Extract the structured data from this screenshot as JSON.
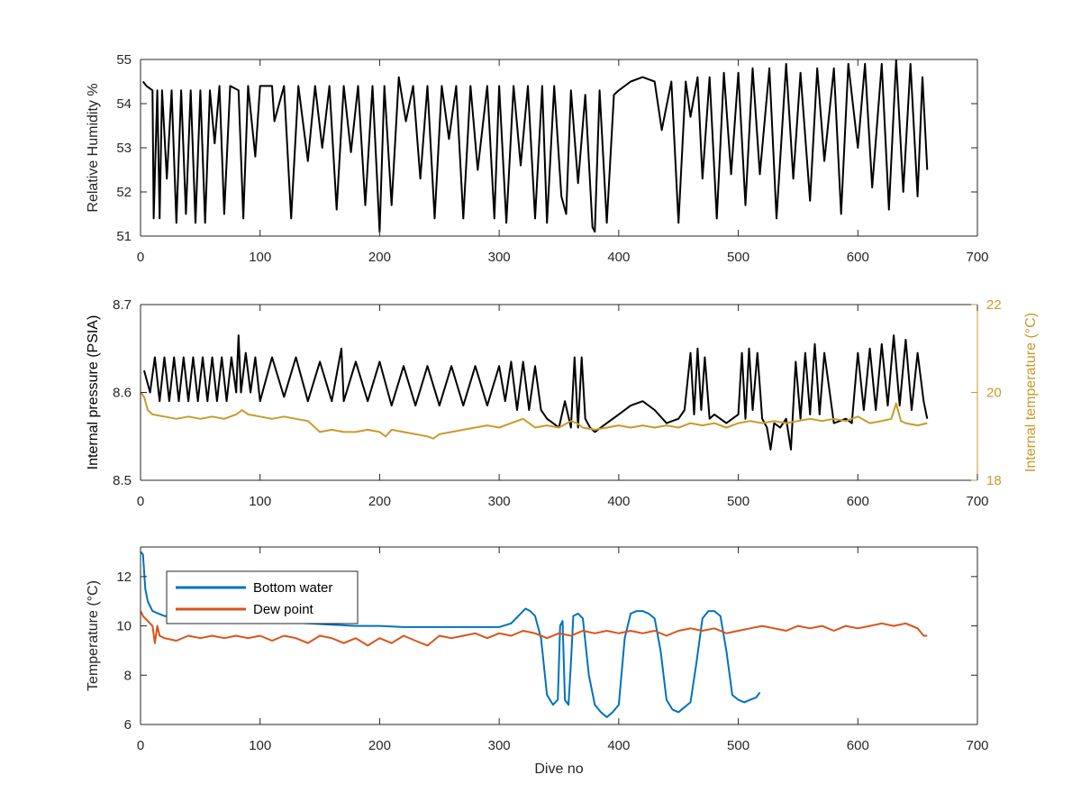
{
  "chart_data": [
    {
      "type": "line",
      "xlabel": "",
      "ylabel": "Relative Humidity %",
      "xlim": [
        0,
        700
      ],
      "ylim": [
        51,
        55
      ],
      "xticks": [
        0,
        100,
        200,
        300,
        400,
        500,
        600,
        700
      ],
      "yticks": [
        51,
        52,
        53,
        54,
        55
      ],
      "grid": false,
      "series": [
        {
          "name": "",
          "color": "#000000",
          "x": [
            2,
            5,
            10,
            11,
            14,
            16,
            18,
            22,
            26,
            30,
            34,
            38,
            42,
            46,
            50,
            54,
            58,
            62,
            66,
            70,
            75,
            82,
            86,
            90,
            96,
            100,
            110,
            112,
            120,
            126,
            132,
            140,
            146,
            152,
            158,
            164,
            170,
            176,
            182,
            188,
            194,
            198,
            200,
            204,
            210,
            216,
            222,
            228,
            234,
            240,
            246,
            252,
            258,
            264,
            270,
            276,
            282,
            290,
            296,
            300,
            306,
            312,
            318,
            324,
            330,
            336,
            340,
            346,
            352,
            356,
            360,
            366,
            372,
            378,
            380,
            384,
            390,
            396,
            400,
            410,
            420,
            430,
            436,
            444,
            450,
            456,
            460,
            466,
            470,
            476,
            482,
            488,
            494,
            500,
            506,
            512,
            518,
            526,
            532,
            540,
            546,
            552,
            560,
            566,
            572,
            580,
            586,
            592,
            600,
            606,
            612,
            620,
            626,
            632,
            638,
            644,
            650,
            654,
            658
          ],
          "values": [
            54.5,
            54.4,
            54.3,
            51.4,
            54.3,
            51.4,
            54.3,
            52.3,
            54.3,
            51.3,
            54.3,
            51.5,
            54.3,
            51.3,
            54.3,
            51.3,
            54.3,
            53.1,
            54.4,
            51.5,
            54.4,
            54.3,
            51.4,
            54.4,
            52.8,
            54.4,
            54.4,
            53.6,
            54.4,
            51.4,
            54.4,
            52.7,
            54.4,
            53.0,
            54.4,
            51.6,
            54.4,
            52.9,
            54.4,
            51.7,
            54.4,
            52.2,
            51.1,
            54.4,
            51.7,
            54.6,
            53.6,
            54.4,
            52.3,
            54.4,
            51.4,
            54.4,
            53.2,
            54.4,
            51.4,
            54.4,
            52.5,
            54.4,
            51.4,
            54.4,
            51.3,
            54.4,
            52.6,
            54.4,
            51.4,
            54.4,
            51.3,
            54.4,
            51.9,
            51.5,
            54.3,
            52.2,
            54.2,
            51.2,
            51.1,
            54.3,
            51.3,
            54.2,
            54.3,
            54.5,
            54.6,
            54.5,
            53.4,
            54.5,
            51.3,
            54.5,
            53.7,
            54.6,
            52.3,
            54.6,
            51.4,
            54.7,
            52.4,
            54.7,
            51.7,
            54.8,
            52.4,
            54.8,
            51.4,
            54.9,
            52.3,
            54.7,
            51.8,
            54.8,
            52.7,
            54.8,
            51.5,
            54.9,
            53.0,
            54.9,
            52.1,
            54.9,
            51.6,
            55.0,
            52.0,
            54.9,
            51.9,
            54.6,
            52.5
          ]
        }
      ]
    },
    {
      "type": "line",
      "xlabel": "",
      "ylabel": "Internal pressure (PSIA)",
      "y2label": "Internal temperature (°C)",
      "xlim": [
        0,
        700
      ],
      "ylim": [
        8.5,
        8.7
      ],
      "y2lim": [
        18,
        22
      ],
      "xticks": [
        0,
        100,
        200,
        300,
        400,
        500,
        600,
        700
      ],
      "yticks": [
        8.5,
        8.6,
        8.7
      ],
      "y2ticks": [
        18,
        20,
        22
      ],
      "grid": false,
      "series": [
        {
          "name": "",
          "axis": "left",
          "color": "#000000",
          "x": [
            3,
            8,
            12,
            16,
            20,
            24,
            28,
            32,
            36,
            40,
            44,
            48,
            52,
            56,
            60,
            64,
            68,
            72,
            76,
            80,
            82,
            84,
            88,
            92,
            96,
            100,
            110,
            120,
            130,
            140,
            150,
            160,
            168,
            170,
            180,
            190,
            200,
            210,
            220,
            230,
            240,
            250,
            260,
            270,
            280,
            290,
            300,
            305,
            310,
            315,
            320,
            325,
            330,
            335,
            340,
            345,
            350,
            355,
            360,
            363,
            366,
            369,
            372,
            376,
            380,
            390,
            400,
            410,
            420,
            430,
            440,
            450,
            455,
            460,
            463,
            466,
            469,
            472,
            476,
            480,
            490,
            500,
            503,
            506,
            509,
            512,
            516,
            520,
            524,
            527,
            530,
            535,
            540,
            544,
            548,
            552,
            556,
            560,
            564,
            568,
            572,
            580,
            590,
            595,
            600,
            605,
            610,
            615,
            620,
            625,
            630,
            635,
            640,
            645,
            650,
            655,
            658
          ],
          "values": [
            8.625,
            8.6,
            8.64,
            8.59,
            8.64,
            8.59,
            8.64,
            8.59,
            8.64,
            8.59,
            8.64,
            8.59,
            8.64,
            8.59,
            8.64,
            8.59,
            8.64,
            8.59,
            8.64,
            8.6,
            8.665,
            8.6,
            8.645,
            8.6,
            8.64,
            8.59,
            8.64,
            8.595,
            8.64,
            8.59,
            8.635,
            8.59,
            8.65,
            8.59,
            8.635,
            8.59,
            8.635,
            8.585,
            8.63,
            8.585,
            8.63,
            8.585,
            8.63,
            8.585,
            8.63,
            8.585,
            8.63,
            8.59,
            8.635,
            8.58,
            8.635,
            8.58,
            8.63,
            8.58,
            8.57,
            8.565,
            8.56,
            8.59,
            8.56,
            8.64,
            8.56,
            8.64,
            8.57,
            8.56,
            8.555,
            8.565,
            8.575,
            8.585,
            8.59,
            8.58,
            8.565,
            8.57,
            8.58,
            8.645,
            8.575,
            8.65,
            8.58,
            8.64,
            8.57,
            8.575,
            8.565,
            8.575,
            8.645,
            8.57,
            8.65,
            8.58,
            8.645,
            8.57,
            8.56,
            8.535,
            8.565,
            8.56,
            8.57,
            8.535,
            8.635,
            8.57,
            8.645,
            8.575,
            8.655,
            8.575,
            8.645,
            8.565,
            8.57,
            8.565,
            8.645,
            8.58,
            8.65,
            8.58,
            8.655,
            8.585,
            8.665,
            8.585,
            8.66,
            8.58,
            8.645,
            8.59,
            8.57
          ]
        },
        {
          "name": "",
          "axis": "right",
          "color": "#C89A2A",
          "x": [
            0,
            3,
            6,
            10,
            20,
            30,
            40,
            50,
            60,
            70,
            80,
            85,
            90,
            100,
            110,
            120,
            130,
            140,
            150,
            160,
            170,
            180,
            190,
            200,
            205,
            210,
            220,
            230,
            240,
            245,
            250,
            260,
            270,
            280,
            290,
            300,
            310,
            320,
            330,
            340,
            350,
            360,
            365,
            370,
            380,
            390,
            400,
            410,
            420,
            430,
            440,
            450,
            460,
            470,
            480,
            490,
            500,
            510,
            520,
            530,
            540,
            550,
            560,
            570,
            580,
            590,
            600,
            610,
            620,
            628,
            632,
            636,
            640,
            650,
            658
          ],
          "values": [
            20.0,
            19.9,
            19.6,
            19.5,
            19.45,
            19.4,
            19.45,
            19.4,
            19.45,
            19.4,
            19.5,
            19.6,
            19.5,
            19.45,
            19.4,
            19.45,
            19.4,
            19.35,
            19.1,
            19.15,
            19.1,
            19.1,
            19.15,
            19.1,
            19.0,
            19.15,
            19.1,
            19.05,
            19.0,
            18.95,
            19.05,
            19.1,
            19.15,
            19.2,
            19.25,
            19.2,
            19.3,
            19.4,
            19.2,
            19.25,
            19.2,
            19.35,
            19.3,
            19.2,
            19.15,
            19.2,
            19.25,
            19.2,
            19.25,
            19.2,
            19.25,
            19.2,
            19.3,
            19.25,
            19.3,
            19.2,
            19.3,
            19.35,
            19.3,
            19.35,
            19.3,
            19.35,
            19.4,
            19.35,
            19.4,
            19.35,
            19.45,
            19.3,
            19.35,
            19.4,
            19.75,
            19.35,
            19.3,
            19.25,
            19.3
          ]
        }
      ]
    },
    {
      "type": "line",
      "xlabel": "Dive no",
      "ylabel": "Temperature (°C)",
      "xlim": [
        0,
        700
      ],
      "ylim": [
        6,
        13.2
      ],
      "xticks": [
        0,
        100,
        200,
        300,
        400,
        500,
        600,
        700
      ],
      "yticks": [
        6,
        8,
        10,
        12
      ],
      "grid": false,
      "legend": "top-left",
      "series": [
        {
          "name": "Bottom water",
          "color": "#0072BD",
          "x": [
            0,
            2,
            4,
            6,
            8,
            10,
            15,
            20,
            40,
            60,
            80,
            100,
            120,
            140,
            160,
            180,
            200,
            220,
            240,
            260,
            280,
            300,
            310,
            318,
            322,
            326,
            330,
            335,
            340,
            345,
            349,
            351,
            353,
            355,
            358,
            360,
            362,
            366,
            370,
            375,
            380,
            385,
            390,
            395,
            400,
            405,
            410,
            415,
            420,
            425,
            430,
            435,
            440,
            445,
            450,
            455,
            460,
            465,
            470,
            475,
            480,
            485,
            490,
            495,
            500,
            505,
            510,
            515,
            518
          ],
          "values": [
            13.0,
            12.9,
            11.5,
            11.0,
            10.8,
            10.6,
            10.5,
            10.4,
            10.35,
            10.3,
            10.25,
            10.2,
            10.15,
            10.1,
            10.05,
            10.0,
            10.0,
            9.95,
            9.95,
            9.95,
            9.95,
            9.95,
            10.1,
            10.5,
            10.7,
            10.6,
            10.4,
            9.5,
            7.2,
            6.8,
            7.0,
            10.0,
            10.2,
            7.0,
            6.8,
            8.5,
            10.4,
            10.5,
            10.3,
            8.0,
            6.8,
            6.5,
            6.3,
            6.5,
            6.8,
            9.5,
            10.5,
            10.6,
            10.6,
            10.5,
            10.3,
            9.0,
            7.0,
            6.6,
            6.5,
            6.7,
            6.9,
            8.5,
            10.3,
            10.6,
            10.6,
            10.4,
            9.0,
            7.2,
            7.0,
            6.9,
            7.0,
            7.1,
            7.3
          ]
        },
        {
          "name": "Dew point",
          "color": "#D95319",
          "x": [
            0,
            2,
            4,
            6,
            8,
            10,
            12,
            14,
            16,
            20,
            30,
            40,
            50,
            60,
            70,
            80,
            90,
            100,
            110,
            120,
            130,
            140,
            150,
            160,
            170,
            180,
            190,
            200,
            210,
            220,
            230,
            240,
            250,
            260,
            270,
            280,
            290,
            300,
            310,
            320,
            330,
            340,
            350,
            360,
            370,
            380,
            390,
            400,
            410,
            420,
            430,
            440,
            450,
            460,
            470,
            480,
            490,
            500,
            510,
            520,
            530,
            540,
            550,
            560,
            570,
            580,
            590,
            600,
            610,
            620,
            630,
            640,
            650,
            655,
            658
          ],
          "values": [
            10.6,
            10.4,
            10.3,
            10.2,
            10.1,
            10.0,
            9.3,
            10.0,
            9.6,
            9.5,
            9.4,
            9.6,
            9.5,
            9.6,
            9.5,
            9.6,
            9.5,
            9.6,
            9.4,
            9.6,
            9.5,
            9.3,
            9.6,
            9.5,
            9.3,
            9.5,
            9.2,
            9.5,
            9.3,
            9.6,
            9.4,
            9.2,
            9.6,
            9.5,
            9.6,
            9.7,
            9.5,
            9.7,
            9.6,
            9.8,
            9.7,
            9.5,
            9.7,
            9.6,
            9.8,
            9.7,
            9.8,
            9.7,
            9.8,
            9.7,
            9.8,
            9.6,
            9.8,
            9.9,
            9.8,
            9.9,
            9.7,
            9.8,
            9.9,
            10.0,
            9.9,
            9.8,
            10.0,
            9.9,
            10.0,
            9.8,
            10.0,
            9.9,
            10.0,
            10.1,
            10.0,
            10.1,
            9.9,
            9.6,
            9.6
          ]
        }
      ]
    }
  ]
}
